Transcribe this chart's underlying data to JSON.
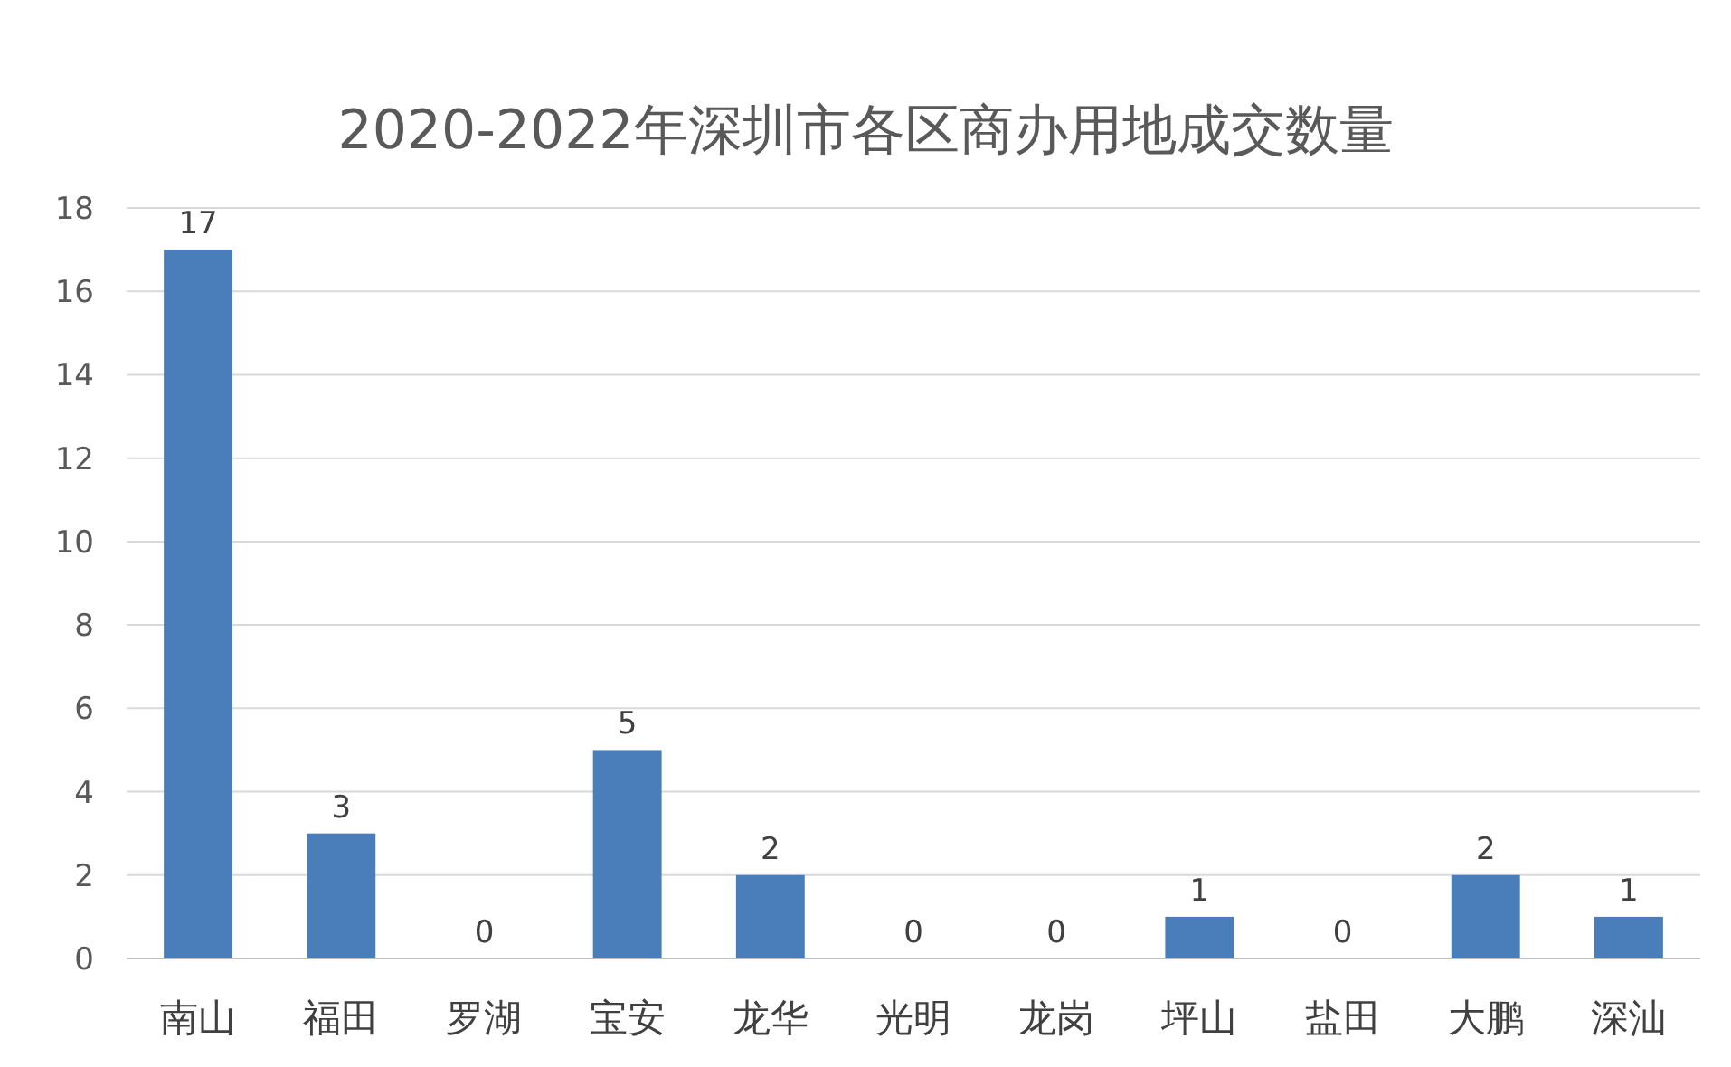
{
  "chart_data": {
    "type": "bar",
    "title": "2020-2022年深圳市各区商办用地成交数量",
    "categories": [
      "南山",
      "福田",
      "罗湖",
      "宝安",
      "龙华",
      "光明",
      "龙岗",
      "坪山",
      "盐田",
      "大鹏",
      "深汕"
    ],
    "values": [
      17,
      3,
      0,
      5,
      2,
      0,
      0,
      1,
      0,
      2,
      1
    ],
    "color": "#4a7ebb",
    "ylim": [
      0,
      18
    ],
    "yticks": [
      0,
      2,
      4,
      6,
      8,
      10,
      12,
      14,
      16,
      18
    ],
    "grid": "y",
    "data_labels": true
  }
}
